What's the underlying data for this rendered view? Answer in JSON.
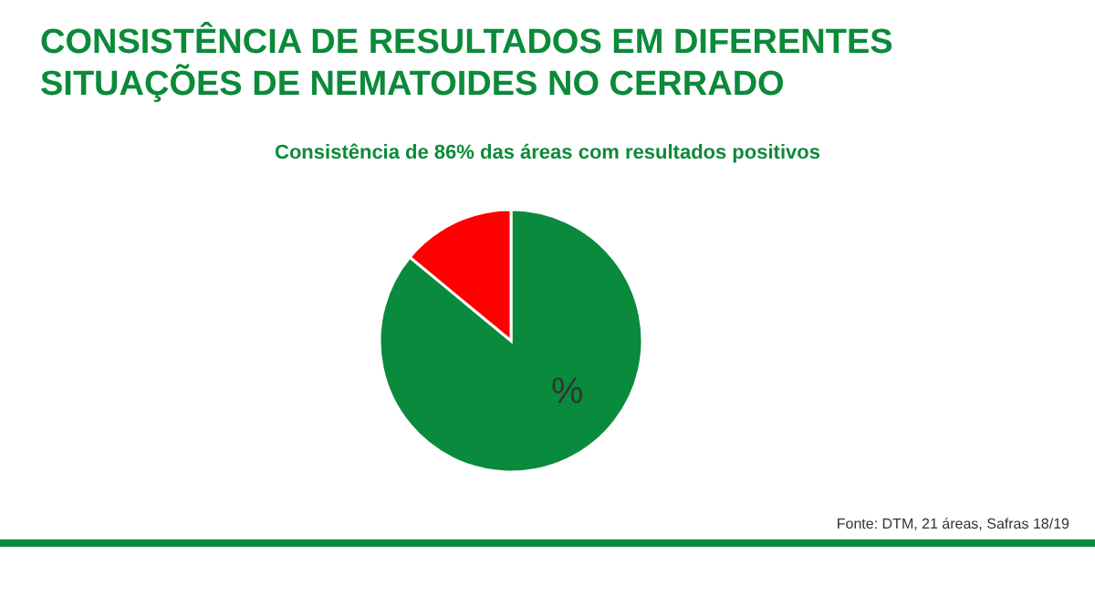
{
  "chart_data": {
    "type": "pie",
    "title": "CONSISTÊNCIA DE RESULTADOS EM DIFERENTES SITUAÇÕES DE NEMATOIDES NO CERRADO",
    "subtitle": "Consistência de 86% das áreas com resultados positivos",
    "categories": [
      null,
      null
    ],
    "values": [
      86,
      14
    ],
    "colors": [
      "#0a8a3c",
      "#ff0000"
    ],
    "annotations": [
      "%",
      "Fonte: DTM, 21 áreas, Safras 18/19"
    ]
  }
}
